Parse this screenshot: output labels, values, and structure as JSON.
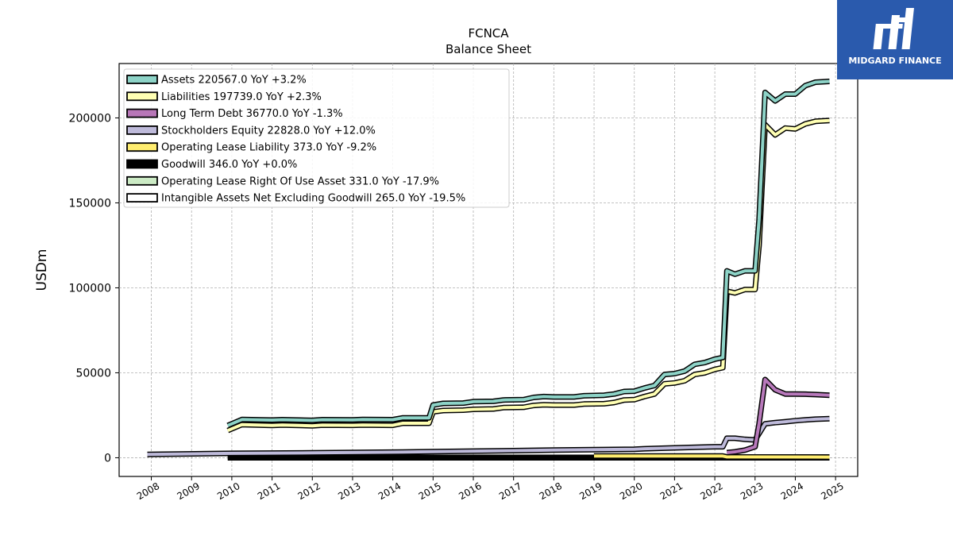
{
  "logo": {
    "text": "MIDGARD FINANCE",
    "background": "#2a5aad"
  },
  "chart_data": {
    "type": "line",
    "title": "FCNCA",
    "subtitle": "Balance  Sheet",
    "xlabel": "",
    "ylabel": "USDm",
    "xlim": [
      2007.2,
      2025.55
    ],
    "ylim": [
      -11000,
      232000
    ],
    "x_ticks": [
      "2008",
      "2009",
      "2010",
      "2011",
      "2012",
      "2013",
      "2014",
      "2015",
      "2016",
      "2017",
      "2018",
      "2019",
      "2020",
      "2021",
      "2022",
      "2023",
      "2024",
      "2025"
    ],
    "y_ticks": [
      0,
      50000,
      100000,
      150000,
      200000
    ],
    "y_tick_labels": [
      "0",
      "50000",
      "100000",
      "150000",
      "200000"
    ],
    "grid": true,
    "legend_position": "top-left",
    "series": [
      {
        "name": "Assets  220567.0 YoY +3.2%",
        "color": "#8dd3c7",
        "points": [
          [
            2009.9,
            19000
          ],
          [
            2010.25,
            22500
          ],
          [
            2011,
            22200
          ],
          [
            2011.25,
            22400
          ],
          [
            2012,
            22000
          ],
          [
            2012.25,
            22400
          ],
          [
            2013,
            22300
          ],
          [
            2013.25,
            22500
          ],
          [
            2014,
            22400
          ],
          [
            2014.25,
            23500
          ],
          [
            2014.9,
            23500
          ],
          [
            2015.0,
            31000
          ],
          [
            2015.25,
            32000
          ],
          [
            2015.75,
            32200
          ],
          [
            2016,
            33000
          ],
          [
            2016.5,
            33200
          ],
          [
            2016.75,
            34000
          ],
          [
            2017.25,
            34200
          ],
          [
            2017.5,
            35500
          ],
          [
            2017.75,
            36000
          ],
          [
            2018,
            35800
          ],
          [
            2018.5,
            35800
          ],
          [
            2018.75,
            36500
          ],
          [
            2019.25,
            36800
          ],
          [
            2019.5,
            37500
          ],
          [
            2019.75,
            39000
          ],
          [
            2020,
            39200
          ],
          [
            2020.25,
            41000
          ],
          [
            2020.5,
            42500
          ],
          [
            2020.75,
            49000
          ],
          [
            2021,
            49500
          ],
          [
            2021.25,
            51000
          ],
          [
            2021.5,
            55000
          ],
          [
            2021.75,
            56000
          ],
          [
            2022,
            58000
          ],
          [
            2022.2,
            59000
          ],
          [
            2022.3,
            110000
          ],
          [
            2022.5,
            108000
          ],
          [
            2022.75,
            110000
          ],
          [
            2023.0,
            110000
          ],
          [
            2023.1,
            140000
          ],
          [
            2023.25,
            215000
          ],
          [
            2023.5,
            210000
          ],
          [
            2023.75,
            214000
          ],
          [
            2024,
            214000
          ],
          [
            2024.25,
            219000
          ],
          [
            2024.5,
            221000
          ],
          [
            2024.85,
            221500
          ]
        ]
      },
      {
        "name": "Liabilities  197739.0 YoY +2.3%",
        "color": "#ffffb3",
        "points": [
          [
            2009.9,
            16000
          ],
          [
            2010.25,
            19500
          ],
          [
            2011,
            19000
          ],
          [
            2011.25,
            19300
          ],
          [
            2012,
            18800
          ],
          [
            2012.25,
            19200
          ],
          [
            2013,
            19100
          ],
          [
            2013.25,
            19300
          ],
          [
            2014,
            19100
          ],
          [
            2014.25,
            20300
          ],
          [
            2014.9,
            20300
          ],
          [
            2015.0,
            27000
          ],
          [
            2015.25,
            27800
          ],
          [
            2015.75,
            28000
          ],
          [
            2016,
            28500
          ],
          [
            2016.5,
            28700
          ],
          [
            2016.75,
            29500
          ],
          [
            2017.25,
            29700
          ],
          [
            2017.5,
            30800
          ],
          [
            2017.75,
            31200
          ],
          [
            2018,
            31000
          ],
          [
            2018.5,
            31000
          ],
          [
            2018.75,
            31600
          ],
          [
            2019.25,
            31800
          ],
          [
            2019.5,
            32500
          ],
          [
            2019.75,
            34000
          ],
          [
            2020,
            34200
          ],
          [
            2020.25,
            36000
          ],
          [
            2020.5,
            37500
          ],
          [
            2020.75,
            43500
          ],
          [
            2021,
            44000
          ],
          [
            2021.25,
            45300
          ],
          [
            2021.5,
            49000
          ],
          [
            2021.75,
            50000
          ],
          [
            2022,
            52000
          ],
          [
            2022.2,
            53000
          ],
          [
            2022.3,
            98000
          ],
          [
            2022.5,
            97000
          ],
          [
            2022.75,
            99000
          ],
          [
            2023.0,
            99000
          ],
          [
            2023.1,
            125000
          ],
          [
            2023.25,
            196000
          ],
          [
            2023.5,
            190000
          ],
          [
            2023.75,
            194000
          ],
          [
            2024,
            193500
          ],
          [
            2024.25,
            196500
          ],
          [
            2024.5,
            198000
          ],
          [
            2024.85,
            198500
          ]
        ]
      },
      {
        "name": "Long Term Debt  36770.0 YoY -1.3%",
        "color": "#bebada",
        "legend_color": "#b877b8",
        "line_color": "#b879bb",
        "points": [
          [
            2022.3,
            3000
          ],
          [
            2022.5,
            3500
          ],
          [
            2022.75,
            4500
          ],
          [
            2023.0,
            6500
          ],
          [
            2023.1,
            20000
          ],
          [
            2023.25,
            46000
          ],
          [
            2023.5,
            40000
          ],
          [
            2023.75,
            37500
          ],
          [
            2024,
            37500
          ],
          [
            2024.25,
            37400
          ],
          [
            2024.5,
            37200
          ],
          [
            2024.85,
            36800
          ]
        ]
      },
      {
        "name": "Stockholders Equity  22828.0 YoY +12.0%",
        "color": "#bebada",
        "points": [
          [
            2007.9,
            2000
          ],
          [
            2010,
            2600
          ],
          [
            2012,
            2900
          ],
          [
            2014,
            3300
          ],
          [
            2015,
            3600
          ],
          [
            2016,
            3900
          ],
          [
            2017,
            4200
          ],
          [
            2018,
            4500
          ],
          [
            2019,
            4800
          ],
          [
            2020,
            5000
          ],
          [
            2020.25,
            5300
          ],
          [
            2021,
            5800
          ],
          [
            2022,
            6500
          ],
          [
            2022.2,
            6500
          ],
          [
            2022.3,
            11500
          ],
          [
            2022.5,
            11500
          ],
          [
            2022.75,
            10800
          ],
          [
            2023.0,
            10500
          ],
          [
            2023.25,
            20000
          ],
          [
            2023.5,
            20700
          ],
          [
            2023.75,
            21200
          ],
          [
            2024,
            21800
          ],
          [
            2024.25,
            22300
          ],
          [
            2024.5,
            22700
          ],
          [
            2024.85,
            23000
          ]
        ]
      },
      {
        "name": "Operating Lease Liability  373.0 YoY -9.2%",
        "color": "#ffed6f",
        "points": [
          [
            2019.0,
            1000
          ],
          [
            2022.2,
            1000
          ],
          [
            2022.3,
            500
          ],
          [
            2024.85,
            400
          ]
        ]
      },
      {
        "name": "Goodwill  346.0 YoY +0.0%",
        "color": "#000000",
        "points": [
          [
            2009.9,
            200
          ],
          [
            2022.3,
            200
          ],
          [
            2024.85,
            346
          ]
        ]
      },
      {
        "name": "Operating Lease Right Of Use Asset  331.0 YoY -17.9%",
        "color": "#ccebc5",
        "points": [
          [
            2019.0,
            800
          ],
          [
            2022.2,
            800
          ],
          [
            2022.3,
            400
          ],
          [
            2024.85,
            350
          ]
        ]
      },
      {
        "name": "Intangible Assets Net Excluding Goodwill  265.0 YoY -19.5%",
        "color": "#ffffff",
        "points": [
          [
            2009.9,
            0
          ],
          [
            2024.85,
            0
          ]
        ]
      }
    ]
  }
}
